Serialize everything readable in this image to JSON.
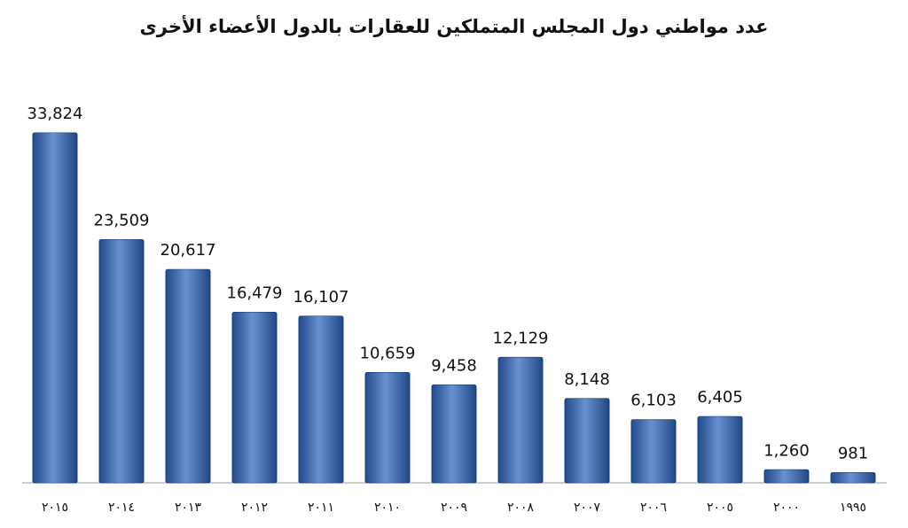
{
  "chart_data": {
    "type": "bar",
    "title": "عدد مواطني دول المجلس المتملكين للعقارات بالدول الأعضاء الأخرى",
    "categories": [
      "٢٠١٥",
      "٢٠١٤",
      "٢٠١٣",
      "٢٠١٢",
      "٢٠١١",
      "٢٠١٠",
      "٢٠٠٩",
      "٢٠٠٨",
      "٢٠٠٧",
      "٢٠٠٦",
      "٢٠٠٥",
      "٢٠٠٠",
      "١٩٩٥"
    ],
    "values": [
      33824,
      23509,
      20617,
      16479,
      16107,
      10659,
      9458,
      12129,
      8148,
      6103,
      6405,
      1260,
      981
    ],
    "value_labels": [
      "33,824",
      "23,509",
      "20,617",
      "16,479",
      "16,107",
      "10,659",
      "9,458",
      "12,129",
      "8,148",
      "6,103",
      "6,405",
      "1,260",
      "981"
    ],
    "color": "#2f65bd"
  }
}
